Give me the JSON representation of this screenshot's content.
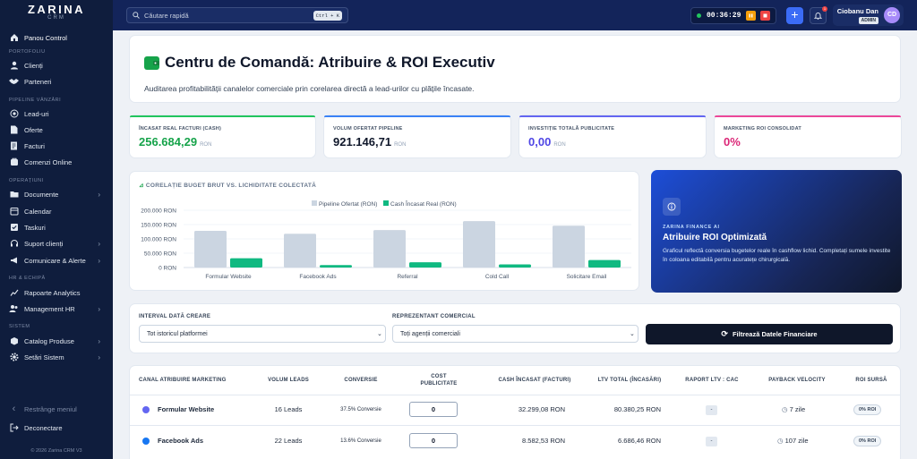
{
  "app": {
    "logo": "ZARINA",
    "logo_sub": "CRM",
    "footer": "© 2026 Zarina CRM V3"
  },
  "sidebar": {
    "sections": {
      "portofoliu": "PORTOFOLIU",
      "pipeline": "PIPELINE VÂNZĂRI",
      "operatiuni": "OPERAȚIUNI",
      "hr": "HR & ECHIPĂ",
      "sistem": "SISTEM"
    },
    "items": [
      {
        "label": "Panou Control",
        "icon": "home-icon"
      },
      {
        "label": "Clienți",
        "icon": "user-icon"
      },
      {
        "label": "Parteneri",
        "icon": "handshake-icon"
      },
      {
        "label": "Lead-uri",
        "icon": "target-icon"
      },
      {
        "label": "Oferte",
        "icon": "file-icon"
      },
      {
        "label": "Facturi",
        "icon": "invoice-icon"
      },
      {
        "label": "Comenzi Online",
        "icon": "cart-icon"
      },
      {
        "label": "Documente",
        "icon": "folder-icon"
      },
      {
        "label": "Calendar",
        "icon": "calendar-icon"
      },
      {
        "label": "Taskuri",
        "icon": "checkbox-icon"
      },
      {
        "label": "Suport clienți",
        "icon": "headset-icon"
      },
      {
        "label": "Comunicare & Alerte",
        "icon": "megaphone-icon"
      },
      {
        "label": "Rapoarte Analytics",
        "icon": "chart-line-icon"
      },
      {
        "label": "Management HR",
        "icon": "users-icon"
      },
      {
        "label": "Catalog Produse",
        "icon": "box-icon"
      },
      {
        "label": "Setări Sistem",
        "icon": "gear-icon"
      }
    ],
    "collapse": "Restrânge meniul",
    "logout": "Deconectare"
  },
  "topbar": {
    "search_placeholder": "Căutare rapidă",
    "shortcut": "Ctrl + K",
    "timer": "00:36:29",
    "notification_count": "1",
    "user_name": "Ciobanu Dan",
    "user_role": "ADMIN",
    "user_initials": "CD"
  },
  "header": {
    "title": "Centru de Comandă: Atribuire & ROI Executiv",
    "subtitle": "Auditarea profitabilității canalelor comerciale prin corelarea directă a lead-urilor cu plățile încasate."
  },
  "kpis": [
    {
      "label": "ÎNCASAT REAL FACTURI (CASH)",
      "value": "256.684,29",
      "unit": "RON",
      "color": "#16a34a"
    },
    {
      "label": "VOLUM OFERTAT PIPELINE",
      "value": "921.146,71",
      "unit": "RON",
      "color": "#0f172a"
    },
    {
      "label": "INVESTIȚIE TOTALĂ PUBLICITATE",
      "value": "0,00",
      "unit": "RON",
      "color": "#4f46e5"
    },
    {
      "label": "MARKETING ROI CONSOLIDAT",
      "value": "0%",
      "unit": "",
      "color": "#db2777"
    }
  ],
  "chart_data": {
    "type": "bar",
    "title": "CORELAȚIE BUGET BRUT VS. LICHIDITATE COLECTATĂ",
    "categories": [
      "Formular Website",
      "Facebook Ads",
      "Referral",
      "Cold Call",
      "Solicitare Email"
    ],
    "series": [
      {
        "name": "Pipeline Ofertat (RON)",
        "color": "#cbd5e1",
        "values": [
          128000,
          118000,
          131000,
          162000,
          146000
        ]
      },
      {
        "name": "Cash Încasat Real (RON)",
        "color": "#10b981",
        "values": [
          32299,
          8583,
          18500,
          11000,
          26000
        ]
      }
    ],
    "y_ticks": [
      "0 RON",
      "50.000 RON",
      "100.000 RON",
      "150.000 RON",
      "200.000 RON"
    ],
    "ylim": [
      0,
      200000
    ],
    "legend": "top-center",
    "grid": true
  },
  "ai_card": {
    "kicker": "ZARINA FINANCE AI",
    "title": "Atribuire ROI Optimizată",
    "desc": "Graficul reflectă conversia bugetelor reale în cashflow lichid. Completați sumele investite în coloana editabilă pentru acuratețe chirurgicală."
  },
  "filters": {
    "date_label": "INTERVAL DATĂ CREARE",
    "date_value": "Tot istoricul platformei",
    "agent_label": "REPREZENTANT COMERCIAL",
    "agent_value": "Toți agenții comerciali",
    "button": "Filtrează Datele Financiare"
  },
  "table": {
    "headers": [
      "CANAL ATRIBUIRE MARKETING",
      "VOLUM LEADS",
      "CONVERSIE",
      "COST PUBLICITATE",
      "CASH ÎNCASAT (FACTURI)",
      "LTV TOTAL (ÎNCASĂRI)",
      "RAPORT LTV : CAC",
      "PAYBACK VELOCITY",
      "ROI SURSĂ"
    ],
    "rows": [
      {
        "channel": "Formular Website",
        "leads": "16 Leads",
        "conversion": "37.5% Conversie",
        "cost": "0",
        "cash": "32.299,08 RON",
        "ltv": "80.380,25 RON",
        "ratio": "-",
        "payback": "7 zile",
        "roi": "0% ROI",
        "icon_color": "#6366f1"
      },
      {
        "channel": "Facebook Ads",
        "leads": "22 Leads",
        "conversion": "13.6% Conversie",
        "cost": "0",
        "cash": "8.582,53 RON",
        "ltv": "6.686,46 RON",
        "ratio": "-",
        "payback": "107 zile",
        "roi": "0% ROI",
        "icon_color": "#1877f2"
      }
    ]
  }
}
